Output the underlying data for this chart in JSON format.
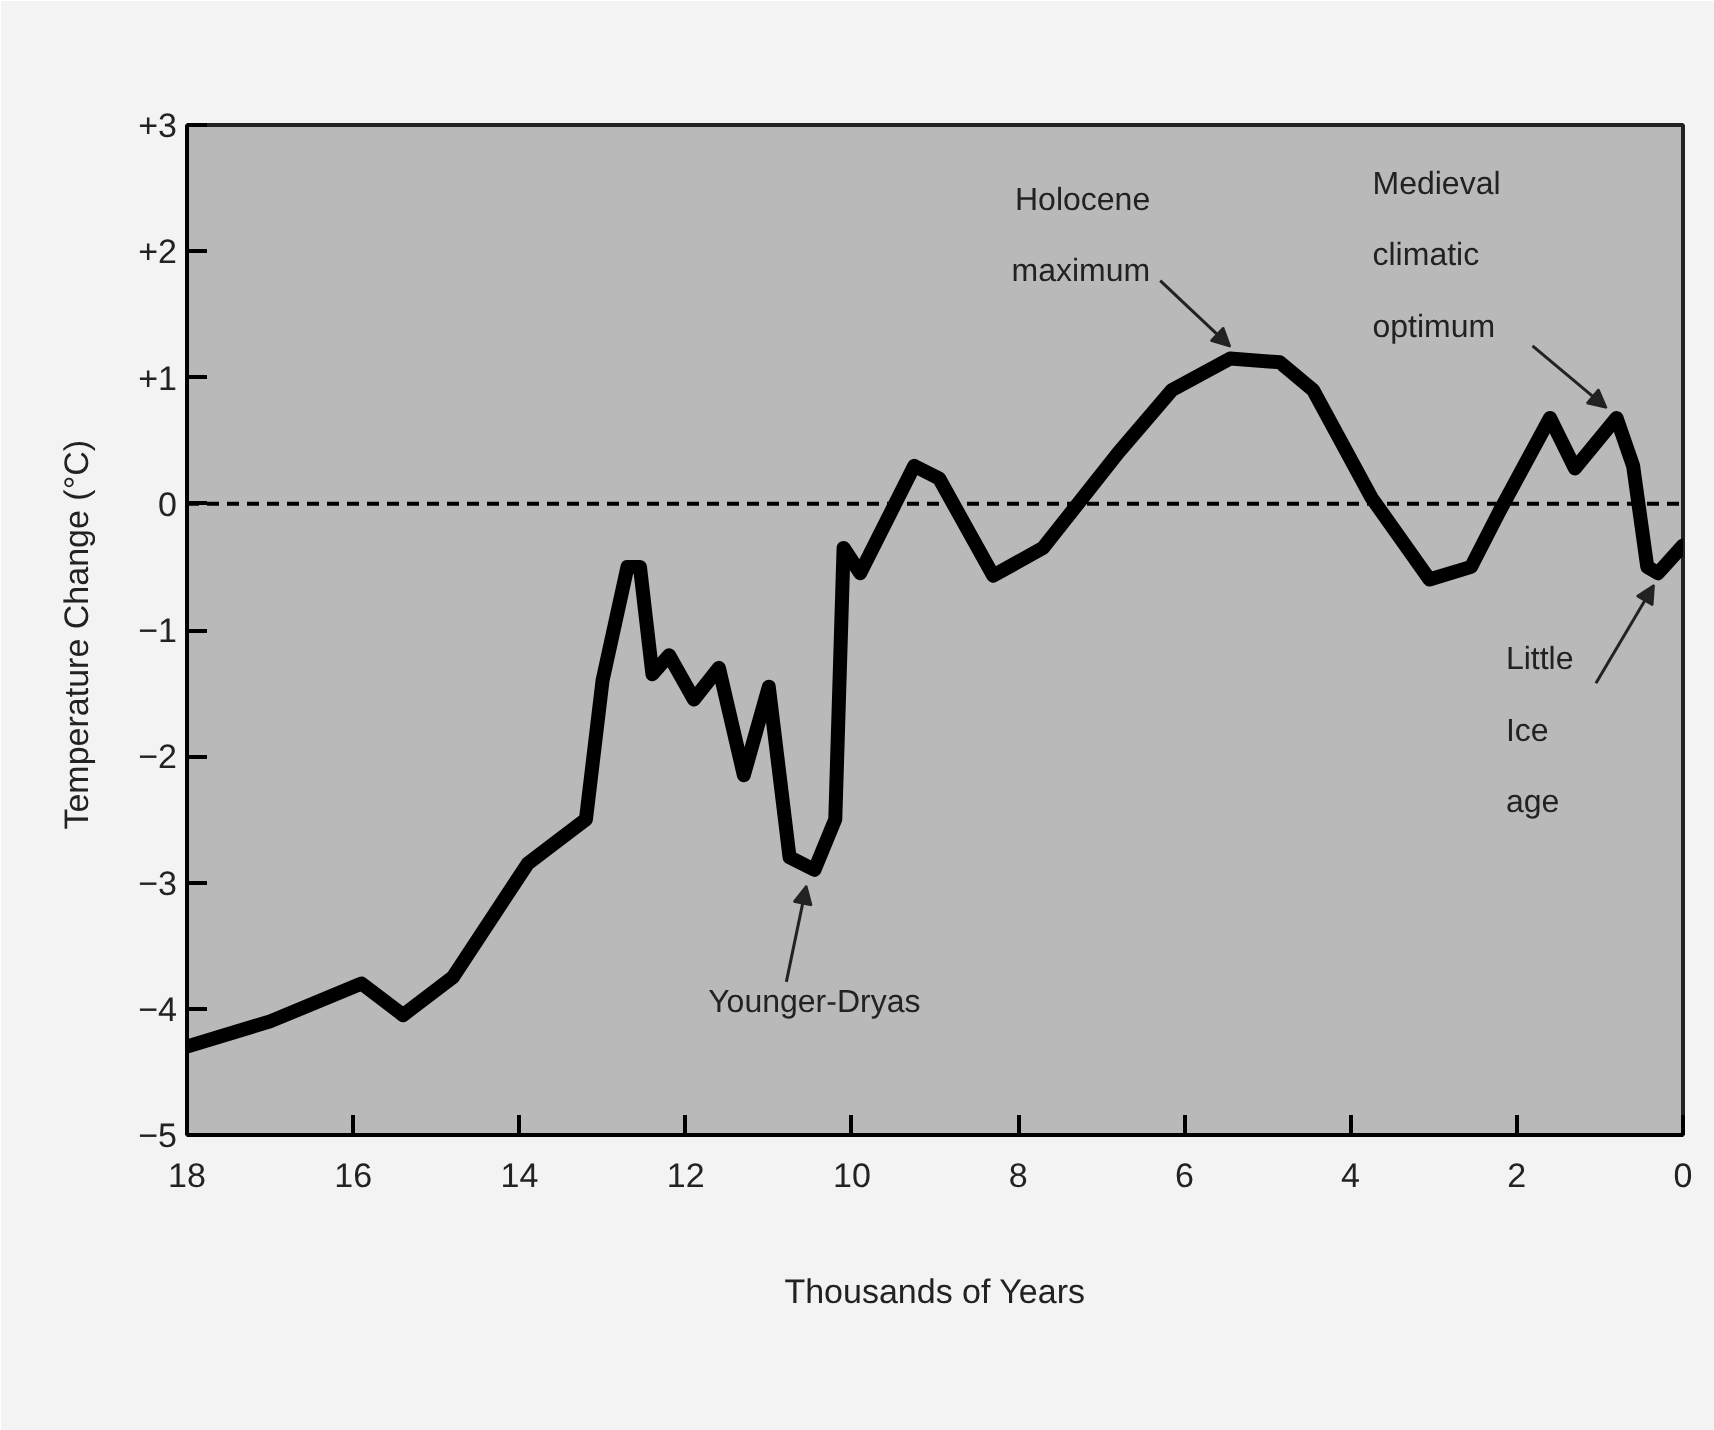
{
  "chart_data": {
    "type": "line",
    "xlabel": "Thousands of Years",
    "ylabel": "Temperature Change  (°C)",
    "xlim": [
      18,
      0
    ],
    "ylim": [
      -5,
      3
    ],
    "xticks": [
      18,
      16,
      14,
      12,
      10,
      8,
      6,
      4,
      2,
      0
    ],
    "yticks": [
      {
        "value": 3,
        "label": "+3"
      },
      {
        "value": 2,
        "label": "+2"
      },
      {
        "value": 1,
        "label": "+1"
      },
      0,
      -1,
      -2,
      -3,
      -4,
      -5
    ],
    "grid": false,
    "line_style": "solid",
    "marker": "none",
    "series": [
      {
        "color": "#000000",
        "x": [
          18,
          17.0,
          15.9,
          15.4,
          14.8,
          13.9,
          13.6,
          13.2,
          13.0,
          12.7,
          12.55,
          12.4,
          12.2,
          11.9,
          11.6,
          11.3,
          11.0,
          10.75,
          10.45,
          10.2,
          10.1,
          9.9,
          9.25,
          8.95,
          8.3,
          7.7,
          6.8,
          6.15,
          5.45,
          4.85,
          4.45,
          3.75,
          3.05,
          2.55,
          2.2,
          1.6,
          1.3,
          0.8,
          0.6,
          0.43,
          0.3,
          0
        ],
        "values": [
          -4.3,
          -4.1,
          -3.8,
          -4.05,
          -3.75,
          -2.85,
          -2.7,
          -2.5,
          -1.4,
          -0.5,
          -0.5,
          -1.35,
          -1.2,
          -1.55,
          -1.3,
          -2.15,
          -1.45,
          -2.8,
          -2.9,
          -2.5,
          -0.35,
          -0.55,
          0.3,
          0.2,
          -0.57,
          -0.35,
          0.4,
          0.9,
          1.15,
          1.12,
          0.9,
          0.05,
          -0.6,
          -0.5,
          -0.05,
          0.68,
          0.28,
          0.68,
          0.3,
          -0.5,
          -0.55,
          -0.33
        ]
      }
    ],
    "ref_lines": [
      {
        "axis": "y",
        "value": 0,
        "line_style": "dashed",
        "color": "#000000"
      }
    ],
    "annotations": [
      {
        "text": "Younger-Dryas",
        "x": 10.5,
        "y": -2.9
      },
      {
        "text": "Holocene\nmaximum",
        "x": 5.4,
        "y": 1.15
      },
      {
        "text": "Medieval\nclimatic\noptimum",
        "x": 0.8,
        "y": 0.68
      },
      {
        "text": "Little\nIce\nage",
        "x": 0.35,
        "y": -0.55
      }
    ]
  }
}
